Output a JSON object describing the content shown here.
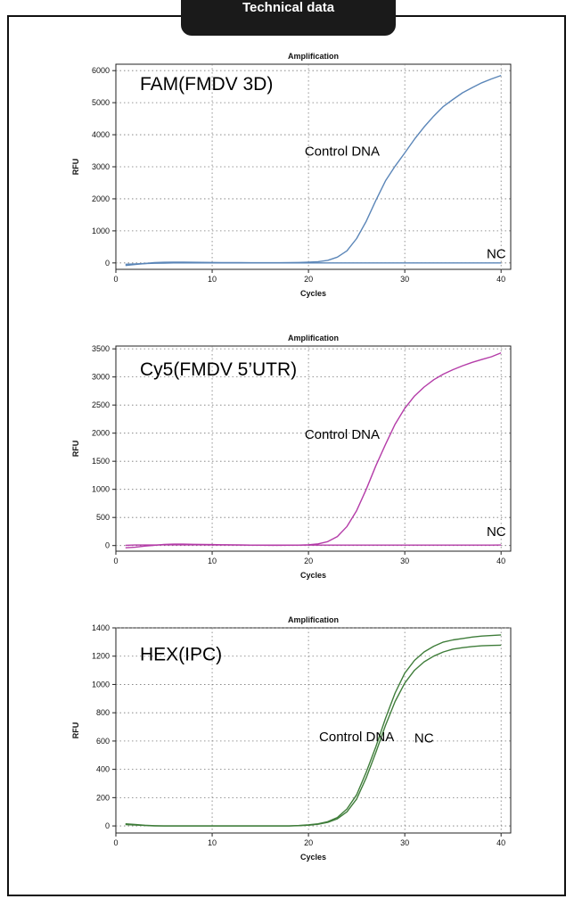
{
  "header": {
    "title": "Technical data"
  },
  "chart_data": [
    {
      "type": "line",
      "title": "Amplification",
      "xlabel": "Cycles",
      "ylabel": "RFU",
      "xlim": [
        0,
        41
      ],
      "ylim": [
        -200,
        6200
      ],
      "xticks": [
        0,
        10,
        20,
        30,
        40
      ],
      "yticks": [
        0,
        1000,
        2000,
        3000,
        4000,
        5000,
        6000
      ],
      "grid": true,
      "panel_label": "FAM(FMDV 3D)",
      "annotations": [
        "Control DNA",
        "NC"
      ],
      "color": "#5b86b8",
      "series": [
        {
          "x": [
            1,
            2,
            3,
            4,
            5,
            6,
            7,
            8,
            9,
            10,
            11,
            12,
            13,
            14,
            15,
            16,
            17,
            18,
            19,
            20,
            21,
            22,
            23,
            24,
            25,
            26,
            27,
            28,
            29,
            30,
            31,
            32,
            33,
            34,
            35,
            36,
            37,
            38,
            39,
            40
          ],
          "values": [
            -80,
            -50,
            -20,
            10,
            20,
            22,
            22,
            20,
            18,
            15,
            12,
            10,
            8,
            6,
            5,
            5,
            5,
            10,
            15,
            25,
            40,
            80,
            180,
            380,
            760,
            1300,
            1950,
            2560,
            3020,
            3430,
            3860,
            4240,
            4580,
            4880,
            5100,
            5310,
            5470,
            5620,
            5740,
            5850
          ]
        },
        {
          "x": [
            1,
            2,
            3,
            4,
            5,
            6,
            7,
            8,
            9,
            10,
            11,
            12,
            13,
            14,
            15,
            16,
            17,
            18,
            19,
            20,
            21,
            22,
            23,
            24,
            25,
            26,
            27,
            28,
            29,
            30,
            31,
            32,
            33,
            34,
            35,
            36,
            37,
            38,
            39,
            40
          ],
          "values": [
            -40,
            -30,
            -20,
            -10,
            -5,
            0,
            0,
            0,
            0,
            0,
            0,
            0,
            0,
            0,
            0,
            0,
            0,
            0,
            0,
            0,
            0,
            0,
            0,
            0,
            0,
            0,
            0,
            0,
            0,
            0,
            0,
            0,
            0,
            0,
            0,
            0,
            0,
            0,
            0,
            0
          ]
        }
      ]
    },
    {
      "type": "line",
      "title": "Amplification",
      "xlabel": "Cycles",
      "ylabel": "RFU",
      "xlim": [
        0,
        41
      ],
      "ylim": [
        -100,
        3550
      ],
      "xticks": [
        0,
        10,
        20,
        30,
        40
      ],
      "yticks": [
        0,
        500,
        1000,
        1500,
        2000,
        2500,
        3000,
        3500
      ],
      "grid": true,
      "panel_label": "Cy5(FMDV 5’UTR)",
      "annotations": [
        "Control DNA",
        "NC"
      ],
      "color": "#b43ca8",
      "series": [
        {
          "x": [
            1,
            2,
            3,
            4,
            5,
            6,
            7,
            8,
            9,
            10,
            11,
            12,
            13,
            14,
            15,
            16,
            17,
            18,
            19,
            20,
            21,
            22,
            23,
            24,
            25,
            26,
            27,
            28,
            29,
            30,
            31,
            32,
            33,
            34,
            35,
            36,
            37,
            38,
            39,
            40
          ],
          "values": [
            -40,
            -30,
            -10,
            5,
            20,
            25,
            25,
            22,
            20,
            18,
            15,
            12,
            10,
            8,
            6,
            5,
            5,
            6,
            8,
            15,
            30,
            70,
            160,
            340,
            620,
            1000,
            1420,
            1800,
            2160,
            2440,
            2660,
            2820,
            2950,
            3050,
            3130,
            3200,
            3260,
            3310,
            3360,
            3430
          ]
        },
        {
          "x": [
            1,
            2,
            3,
            4,
            5,
            6,
            7,
            8,
            9,
            10,
            11,
            12,
            13,
            14,
            15,
            16,
            17,
            18,
            19,
            20,
            21,
            22,
            23,
            24,
            25,
            26,
            27,
            28,
            29,
            30,
            31,
            32,
            33,
            34,
            35,
            36,
            37,
            38,
            39,
            40
          ],
          "values": [
            5,
            10,
            10,
            10,
            12,
            12,
            12,
            12,
            12,
            10,
            10,
            10,
            10,
            8,
            8,
            8,
            8,
            8,
            8,
            8,
            8,
            8,
            8,
            8,
            8,
            8,
            8,
            8,
            8,
            8,
            8,
            8,
            8,
            8,
            8,
            8,
            8,
            8,
            8,
            10
          ]
        }
      ]
    },
    {
      "type": "line",
      "title": "Amplification",
      "xlabel": "Cycles",
      "ylabel": "RFU",
      "xlim": [
        0,
        41
      ],
      "ylim": [
        -50,
        1400
      ],
      "xticks": [
        0,
        10,
        20,
        30,
        40
      ],
      "yticks": [
        0,
        200,
        400,
        600,
        800,
        1000,
        1200,
        1400
      ],
      "grid": true,
      "panel_label": "HEX(IPC)",
      "annotations": [
        "Control DNA",
        "NC"
      ],
      "color": "#3f7d3a",
      "series": [
        {
          "x": [
            1,
            2,
            3,
            4,
            5,
            6,
            7,
            8,
            9,
            10,
            11,
            12,
            13,
            14,
            15,
            16,
            17,
            18,
            19,
            20,
            21,
            22,
            23,
            24,
            25,
            26,
            27,
            28,
            29,
            30,
            31,
            32,
            33,
            34,
            35,
            36,
            37,
            38,
            39,
            40
          ],
          "values": [
            15,
            10,
            5,
            2,
            0,
            0,
            0,
            0,
            0,
            0,
            0,
            0,
            0,
            0,
            0,
            0,
            0,
            0,
            3,
            8,
            15,
            30,
            60,
            120,
            220,
            380,
            560,
            760,
            940,
            1080,
            1170,
            1230,
            1270,
            1300,
            1315,
            1325,
            1335,
            1342,
            1346,
            1350
          ]
        },
        {
          "x": [
            1,
            2,
            3,
            4,
            5,
            6,
            7,
            8,
            9,
            10,
            11,
            12,
            13,
            14,
            15,
            16,
            17,
            18,
            19,
            20,
            21,
            22,
            23,
            24,
            25,
            26,
            27,
            28,
            29,
            30,
            31,
            32,
            33,
            34,
            35,
            36,
            37,
            38,
            39,
            40
          ],
          "values": [
            10,
            6,
            3,
            0,
            0,
            0,
            0,
            0,
            0,
            0,
            0,
            0,
            0,
            0,
            0,
            0,
            0,
            0,
            2,
            5,
            12,
            25,
            50,
            100,
            190,
            340,
            520,
            710,
            880,
            1010,
            1100,
            1160,
            1200,
            1230,
            1250,
            1260,
            1268,
            1273,
            1276,
            1278
          ]
        }
      ]
    }
  ]
}
